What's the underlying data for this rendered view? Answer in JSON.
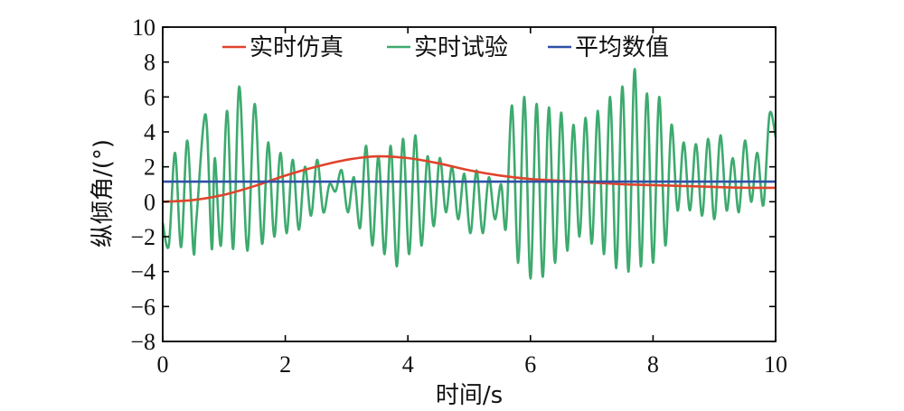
{
  "chart_data": {
    "type": "line",
    "xlabel": "时间/s",
    "ylabel": "纵倾角/(°)",
    "xlim": [
      0,
      10
    ],
    "ylim": [
      -8,
      10
    ],
    "xticks": [
      "0",
      "2",
      "4",
      "6",
      "8",
      "10"
    ],
    "yticks": [
      "−8",
      "−6",
      "−4",
      "−2",
      "0",
      "2",
      "4",
      "6",
      "8",
      "10"
    ],
    "grid": false,
    "legend_position": "top",
    "series": [
      {
        "name": "实时仿真",
        "color": "#e0442c",
        "x": [
          0,
          0.5,
          1,
          1.5,
          2,
          2.5,
          3,
          3.5,
          4,
          4.5,
          5,
          5.5,
          6,
          6.5,
          7,
          7.5,
          8,
          8.5,
          9,
          9.5,
          10
        ],
        "y": [
          0,
          0.1,
          0.4,
          0.9,
          1.5,
          2.0,
          2.4,
          2.6,
          2.5,
          2.2,
          1.8,
          1.5,
          1.3,
          1.2,
          1.1,
          1.0,
          0.95,
          0.9,
          0.85,
          0.8,
          0.8
        ]
      },
      {
        "name": "实时试验",
        "color": "#3daa6e",
        "x": [
          0,
          0.1,
          0.2,
          0.3,
          0.4,
          0.5,
          0.55,
          0.7,
          0.8,
          0.85,
          0.95,
          1.05,
          1.15,
          1.25,
          1.38,
          1.5,
          1.62,
          1.72,
          1.82,
          1.92,
          2.02,
          2.12,
          2.22,
          2.32,
          2.42,
          2.52,
          2.62,
          2.72,
          2.82,
          2.92,
          3.02,
          3.12,
          3.22,
          3.32,
          3.42,
          3.52,
          3.62,
          3.72,
          3.82,
          3.92,
          4.02,
          4.12,
          4.22,
          4.32,
          4.42,
          4.52,
          4.62,
          4.72,
          4.82,
          4.92,
          5.02,
          5.12,
          5.22,
          5.32,
          5.42,
          5.52,
          5.6,
          5.7,
          5.8,
          5.9,
          6.0,
          6.1,
          6.2,
          6.3,
          6.4,
          6.5,
          6.6,
          6.7,
          6.8,
          6.9,
          7.0,
          7.1,
          7.2,
          7.3,
          7.4,
          7.5,
          7.6,
          7.7,
          7.8,
          7.9,
          8.0,
          8.1,
          8.2,
          8.3,
          8.4,
          8.5,
          8.6,
          8.7,
          8.8,
          8.9,
          9.0,
          9.1,
          9.2,
          9.3,
          9.4,
          9.5,
          9.6,
          9.7,
          9.8,
          9.9,
          10.0
        ],
        "y": [
          -1.2,
          -2.5,
          2.8,
          -2.6,
          3.5,
          -2.8,
          -1.0,
          5.0,
          -2.7,
          2.5,
          -2.5,
          5.2,
          -2.7,
          6.6,
          -2.8,
          5.6,
          -2.4,
          3.4,
          -2.0,
          2.8,
          -1.8,
          2.4,
          -1.6,
          2.0,
          -0.8,
          2.4,
          -0.6,
          1.0,
          0.6,
          1.8,
          -0.6,
          1.4,
          -1.5,
          3.2,
          -2.5,
          2.6,
          -3.0,
          3.2,
          -3.7,
          3.6,
          -3.0,
          3.8,
          -2.5,
          2.6,
          -1.4,
          2.5,
          -0.6,
          2.0,
          -1.0,
          1.6,
          -1.8,
          1.8,
          -1.8,
          1.4,
          -1.0,
          1.0,
          -1.5,
          5.5,
          -3.5,
          6.0,
          -4.4,
          5.6,
          -4.3,
          5.4,
          -3.5,
          5.1,
          -2.8,
          4.4,
          -2.0,
          4.8,
          -2.4,
          5.2,
          -3.0,
          6.0,
          -3.8,
          6.6,
          -4.0,
          7.6,
          -3.7,
          6.2,
          -3.5,
          6.0,
          -2.5,
          4.4,
          -0.5,
          3.4,
          -0.5,
          3.3,
          -0.8,
          3.6,
          -1.0,
          3.8,
          -0.5,
          2.5,
          -0.6,
          3.5,
          0.0,
          2.8,
          -0.2,
          5.0,
          3.7
        ]
      },
      {
        "name": "平均数值",
        "color": "#2f4fa8",
        "x": [
          0,
          10
        ],
        "y": [
          1.15,
          1.15
        ]
      }
    ]
  }
}
